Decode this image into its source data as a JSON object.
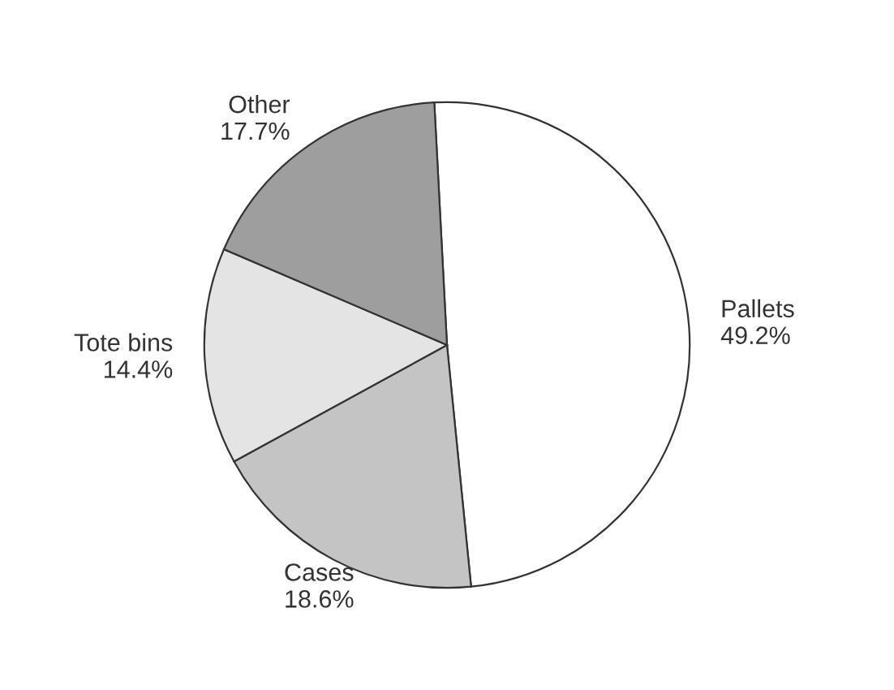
{
  "chart_data": {
    "type": "pie",
    "categories": [
      "Pallets",
      "Cases",
      "Tote bins",
      "Other"
    ],
    "values": [
      49.2,
      18.6,
      14.4,
      17.7
    ],
    "colors": [
      "#ffffff",
      "#c4c4c4",
      "#e4e4e4",
      "#9e9e9e"
    ],
    "value_labels": [
      "49.2%",
      "18.6%",
      "14.4%",
      "17.7%"
    ],
    "legend": false
  }
}
